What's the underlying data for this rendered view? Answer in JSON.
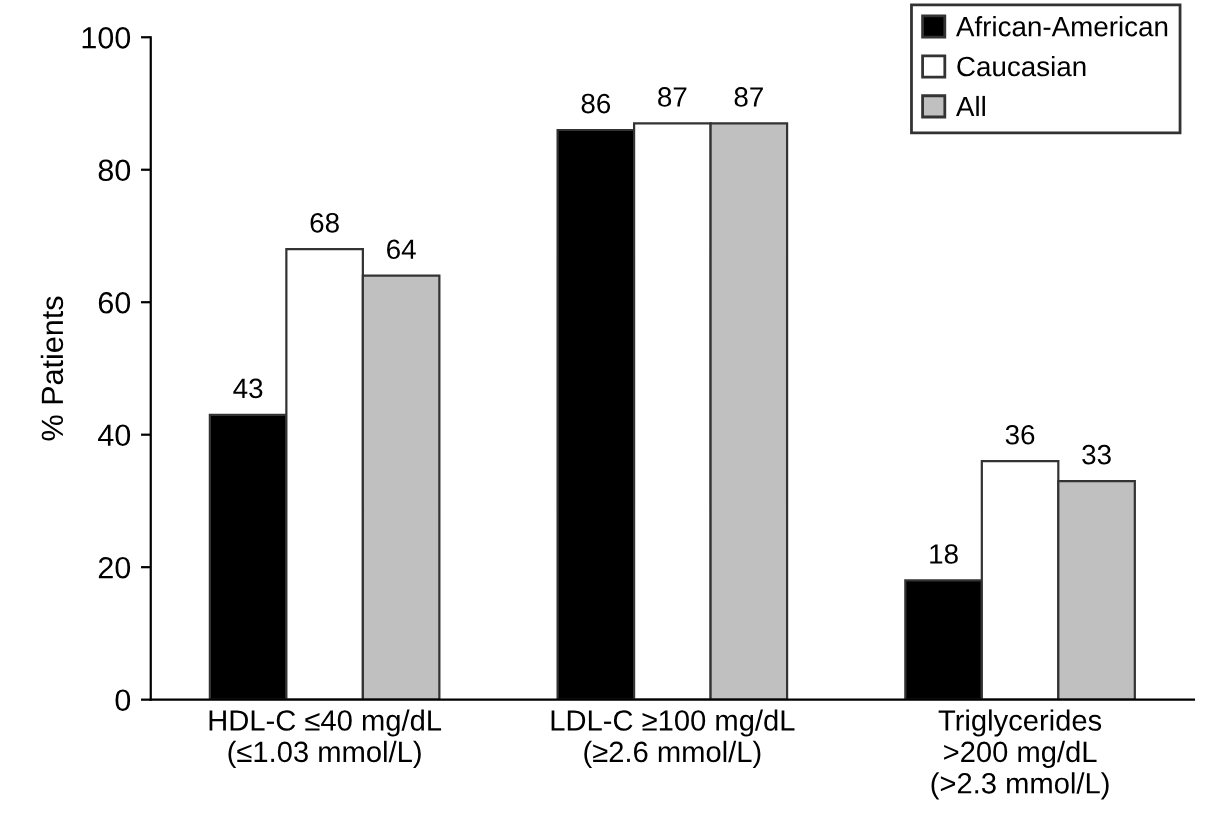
{
  "chart_data": {
    "type": "bar",
    "ylabel": "% Patients",
    "categories": [
      "HDL-C ≤40 mg/dL\n(≤1.03 mmol/L)",
      "LDL-C ≥100 mg/dL\n(≥2.6 mmol/L)",
      "Triglycerides\n>200 mg/dL\n(>2.3 mmol/L)"
    ],
    "series": [
      {
        "name": "African-American",
        "color": "#000000",
        "values": [
          43,
          86,
          18
        ]
      },
      {
        "name": "Caucasian",
        "color": "#ffffff",
        "values": [
          68,
          87,
          36
        ]
      },
      {
        "name": "All",
        "color": "#c0c0c0",
        "values": [
          64,
          87,
          33
        ]
      }
    ],
    "ylim": [
      0,
      100
    ],
    "yticks": [
      0,
      20,
      40,
      60,
      80,
      100
    ],
    "data_labels": true,
    "legend": "top right",
    "grid": false
  }
}
